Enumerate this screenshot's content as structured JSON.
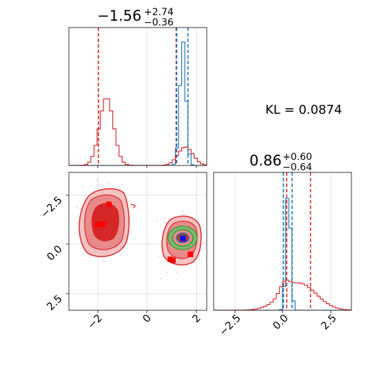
{
  "chart_data": [
    {
      "panel": "marginal-x",
      "type": "histogram",
      "title": {
        "main": "−1.56",
        "sup": "+2.74",
        "sub": "−0.36"
      },
      "xlim": [
        -3.1,
        2.4
      ],
      "grid": true,
      "series": [
        {
          "color": "#1f77b4",
          "peaks": [
            {
              "center": 1.45,
              "sigma": 0.12,
              "height": 1.0
            }
          ]
        },
        {
          "color": "#d62728",
          "peaks": [
            {
              "center": -1.6,
              "sigma": 0.28,
              "height": 0.55
            },
            {
              "center": 1.55,
              "sigma": 0.3,
              "height": 0.15
            }
          ]
        }
      ],
      "vlines": [
        {
          "x": -1.92,
          "color": "#d62728"
        },
        {
          "x": 1.18,
          "color": "#d62728"
        },
        {
          "x": 1.2,
          "color": "#1f77b4"
        },
        {
          "x": 1.65,
          "color": "#1f77b4"
        }
      ]
    },
    {
      "panel": "marginal-y",
      "type": "histogram",
      "title": {
        "main": "0.86",
        "sup": "+0.60",
        "sub": "−0.64"
      },
      "xlim": [
        -3.6,
        3.6
      ],
      "grid": true,
      "x_ticks": [
        -2.5,
        0.0,
        2.5
      ],
      "x_tick_labels": [
        "−2.5",
        "0.0",
        "2.5"
      ],
      "series": [
        {
          "color": "#1f77b4",
          "peaks": [
            {
              "center": 0.3,
              "sigma": 0.12,
              "height": 1.0
            }
          ]
        },
        {
          "color": "#d62728",
          "peaks": [
            {
              "center": 0.85,
              "sigma": 0.9,
              "height": 0.22
            },
            {
              "center": 0.1,
              "sigma": 0.25,
              "height": 0.08
            }
          ]
        }
      ],
      "vlines": [
        {
          "x": 0.22,
          "color": "#d62728"
        },
        {
          "x": 1.46,
          "color": "#d62728"
        },
        {
          "x": 0.05,
          "color": "#1f77b4"
        },
        {
          "x": 0.5,
          "color": "#1f77b4"
        }
      ]
    },
    {
      "panel": "joint",
      "type": "contour",
      "xlim": [
        -3.1,
        2.4
      ],
      "ylim": [
        -3.3,
        3.6
      ],
      "grid": true,
      "x_ticks": [
        -2,
        0,
        2
      ],
      "x_tick_labels": [
        "−2",
        "0",
        "2"
      ],
      "y_ticks": [
        -2.5,
        0.0,
        2.5
      ],
      "y_tick_labels": [
        "−2.5",
        "0.0",
        "2.5"
      ],
      "points": [
        {
          "x": -1.5,
          "y": 2.0,
          "color": "#ff0000"
        },
        {
          "x": -1.95,
          "y": 1.0,
          "color": "#ff0000"
        },
        {
          "x": -1.75,
          "y": 1.0,
          "color": "#ff0000"
        },
        {
          "x": 0.95,
          "y": -0.75,
          "color": "#ff0000"
        },
        {
          "x": 1.05,
          "y": -0.8,
          "color": "#ff0000"
        },
        {
          "x": 1.75,
          "y": -0.5,
          "color": "#ff0000"
        },
        {
          "x": 1.45,
          "y": 0.3,
          "color": "#0000ff"
        }
      ]
    }
  ],
  "annotation": "KL = 0.0874"
}
